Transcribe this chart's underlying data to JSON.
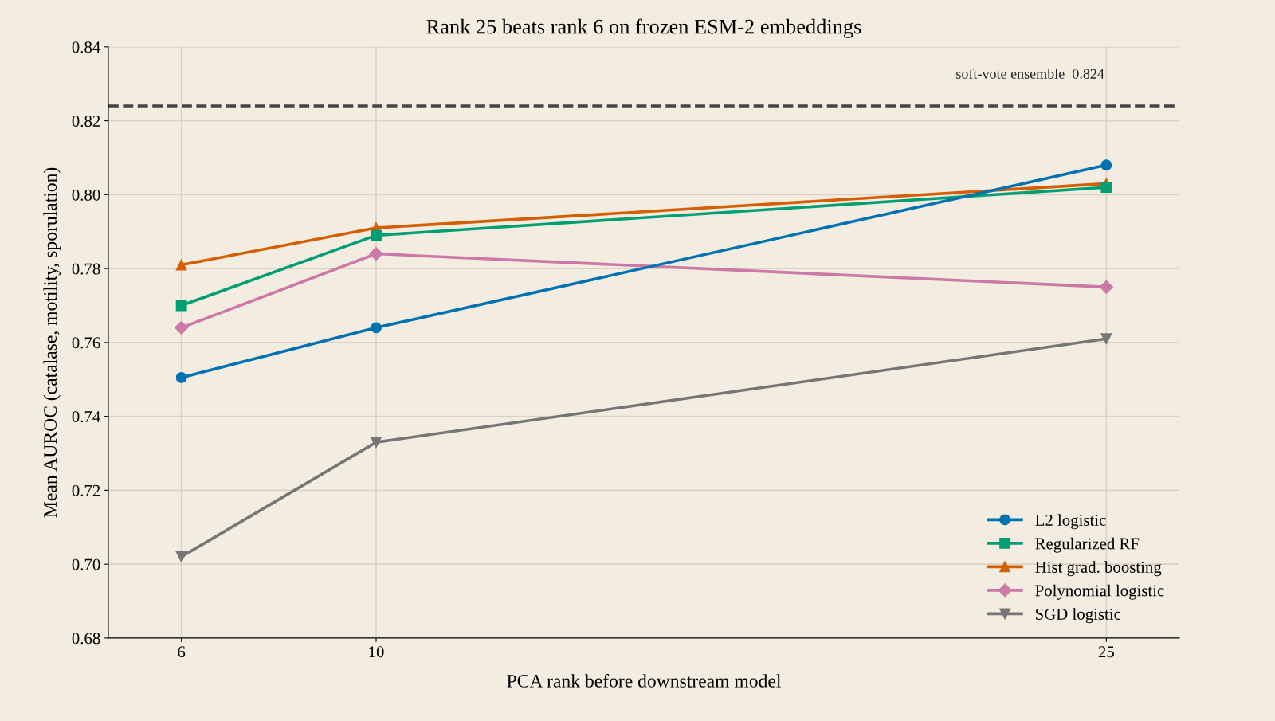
{
  "chart_data": {
    "type": "line",
    "title": "Rank 25 beats rank 6 on frozen ESM-2 embeddings",
    "xlabel": "PCA rank before downstream model",
    "ylabel": "Mean AUROC (catalase, motility, sporulation)",
    "x": [
      6,
      10,
      25
    ],
    "series": [
      {
        "name": "L2 logistic",
        "color": "#0072b2",
        "marker": "circle",
        "values": [
          0.7505,
          0.764,
          0.808
        ]
      },
      {
        "name": "Regularized RF",
        "color": "#009e73",
        "marker": "square",
        "values": [
          0.77,
          0.789,
          0.802
        ]
      },
      {
        "name": "Hist grad. boosting",
        "color": "#d55e00",
        "marker": "triangle",
        "values": [
          0.781,
          0.791,
          0.803
        ]
      },
      {
        "name": "Polynomial logistic",
        "color": "#cc79a7",
        "marker": "diamond",
        "values": [
          0.764,
          0.784,
          0.775
        ]
      },
      {
        "name": "SGD logistic",
        "color": "#767676",
        "marker": "triangle_down",
        "values": [
          0.702,
          0.733,
          0.761
        ]
      }
    ],
    "xlim": [
      4.5,
      26.5
    ],
    "xticks": [
      6,
      10,
      25
    ],
    "ylim": [
      0.68,
      0.84
    ],
    "yticks": [
      {
        "value": 0.68,
        "label": "0.68"
      },
      {
        "value": 0.7,
        "label": "0.70"
      },
      {
        "value": 0.72,
        "label": "0.72"
      },
      {
        "value": 0.74,
        "label": "0.74"
      },
      {
        "value": 0.76,
        "label": "0.76"
      },
      {
        "value": 0.78,
        "label": "0.78"
      },
      {
        "value": 0.8,
        "label": "0.80"
      },
      {
        "value": 0.82,
        "label": "0.82"
      },
      {
        "value": 0.84,
        "label": "0.84"
      }
    ],
    "ref_lines": [
      {
        "axis": "y",
        "value": 0.824,
        "label": "soft-vote ensemble  0.824",
        "color": "#444444",
        "line_style": "dashed"
      }
    ],
    "grid": true,
    "legend": "bottom right",
    "line_style": "solid"
  }
}
